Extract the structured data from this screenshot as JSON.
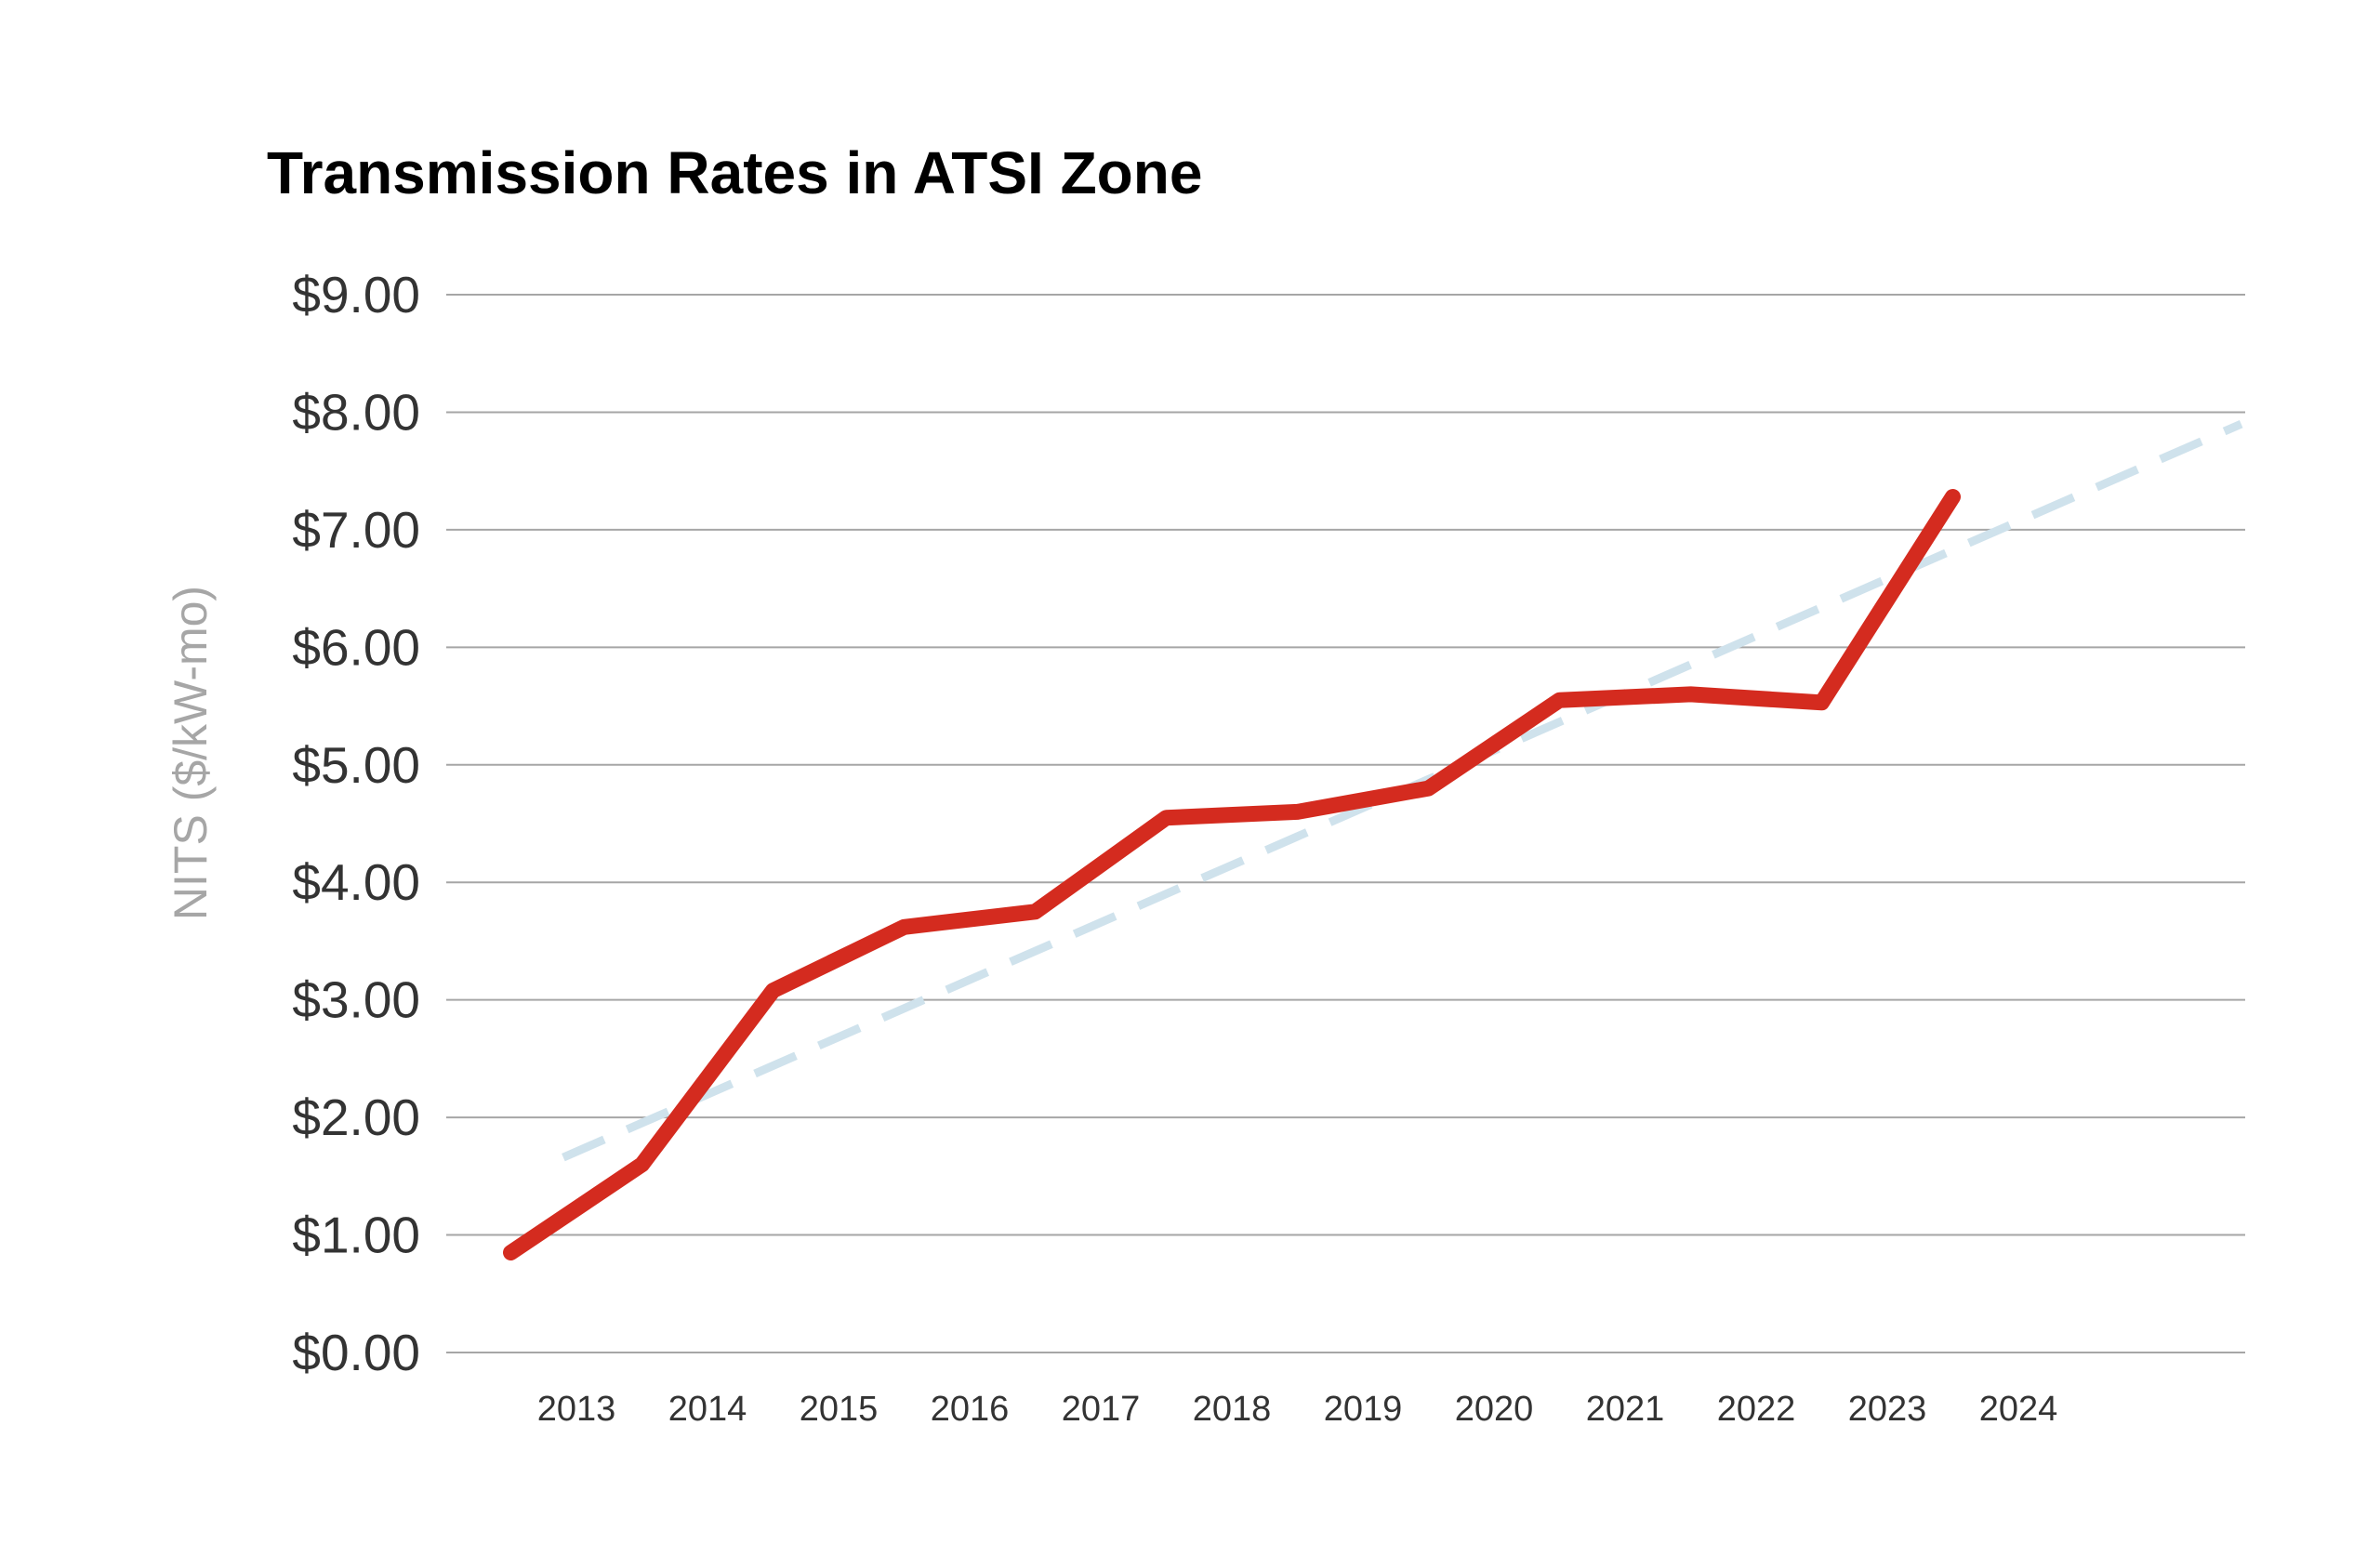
{
  "chart_data": {
    "type": "line",
    "title": "Transmission Rates in ATSI Zone",
    "ylabel": "NITS ($/kW-mo)",
    "xlabel": "",
    "categories": [
      "2013",
      "2014",
      "2015",
      "2016",
      "2017",
      "2018",
      "2019",
      "2020",
      "2021",
      "2022",
      "2023",
      "2024"
    ],
    "y_ticks": [
      "$0.00",
      "$1.00",
      "$2.00",
      "$3.00",
      "$4.00",
      "$5.00",
      "$6.00",
      "$7.00",
      "$8.00",
      "$9.00"
    ],
    "ylim": [
      0,
      9
    ],
    "grid": true,
    "series": [
      {
        "style": "solid",
        "color": "#d42b1f",
        "x": [
          2012.5,
          2013.5,
          2014.5,
          2015.5,
          2016.5,
          2017.5,
          2018.5,
          2019.5,
          2020.5,
          2021.5,
          2022.5,
          2023.5
        ],
        "values": [
          0.85,
          1.6,
          3.08,
          3.62,
          3.75,
          4.55,
          4.6,
          4.8,
          5.55,
          5.6,
          5.53,
          7.28
        ]
      },
      {
        "style": "dashed",
        "color": "#cfe2ec",
        "x": [
          2012.9,
          2025.7
        ],
        "values": [
          1.66,
          7.9
        ]
      }
    ]
  }
}
